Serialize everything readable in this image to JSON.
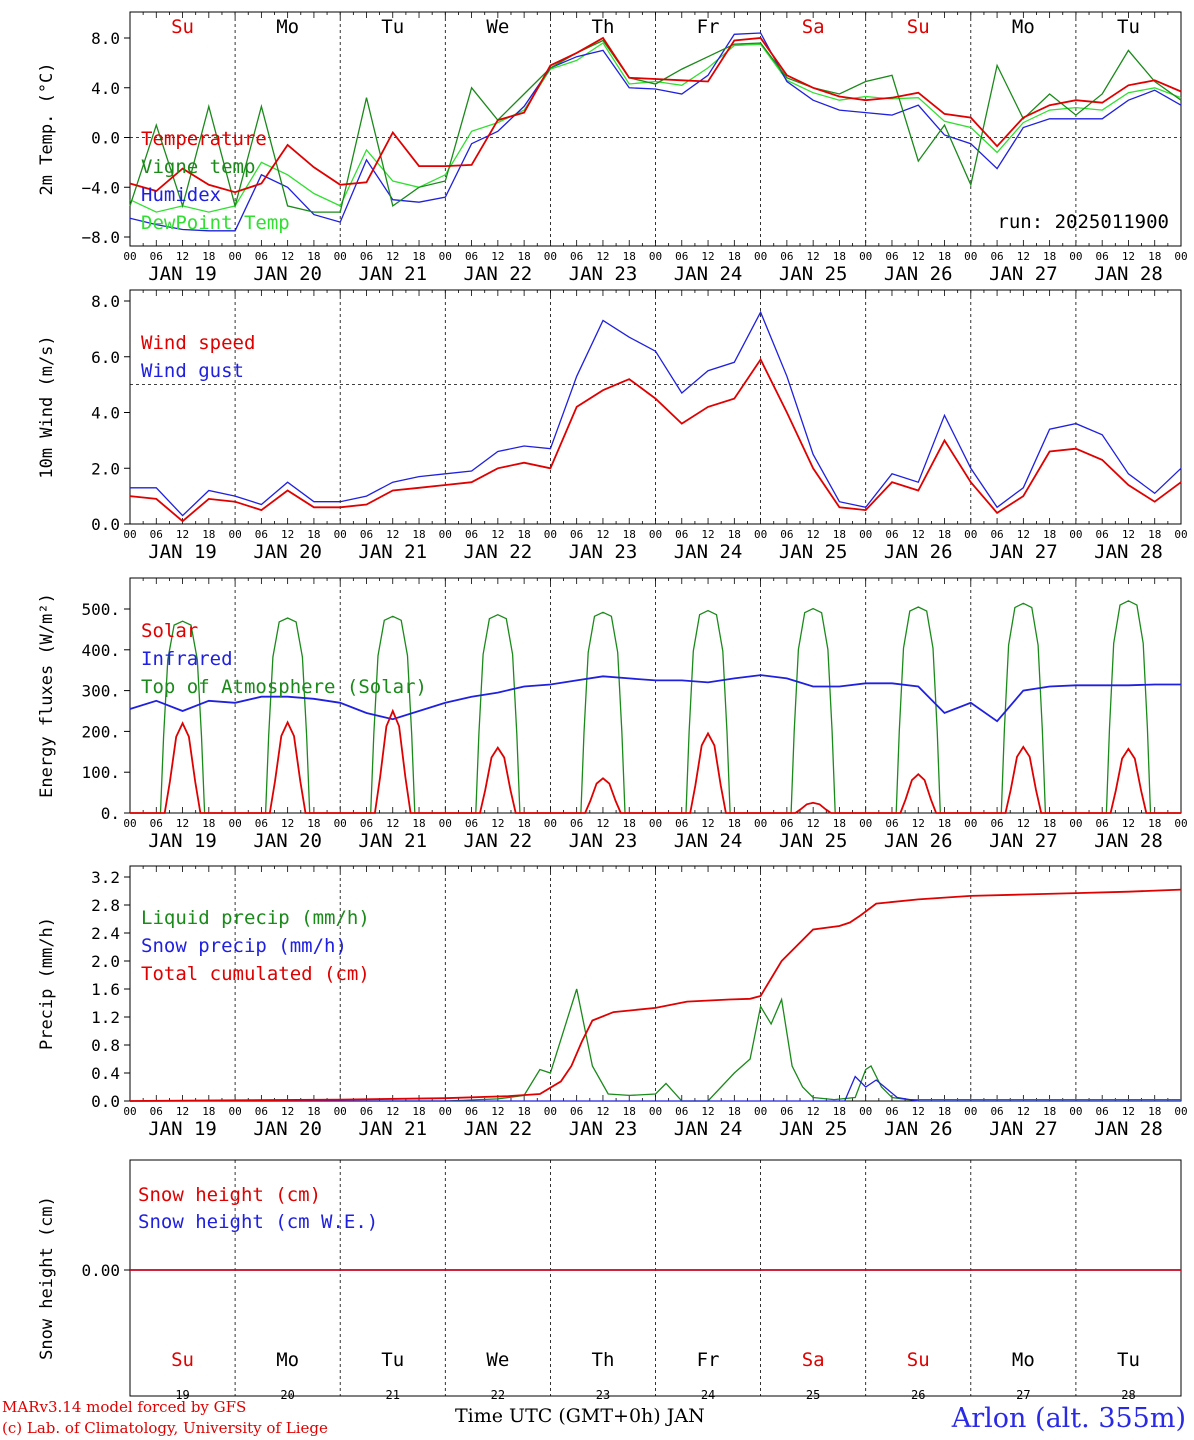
{
  "days": [
    "19",
    "20",
    "21",
    "22",
    "23",
    "24",
    "25",
    "26",
    "27",
    "28"
  ],
  "month": "JAN",
  "weekdays": [
    "Su",
    "Mo",
    "Tu",
    "We",
    "Th",
    "Fr",
    "Sa",
    "Su",
    "Mo",
    "Tu"
  ],
  "weekend_flags": [
    true,
    false,
    false,
    false,
    false,
    false,
    true,
    true,
    false,
    false
  ],
  "hour_ticks": [
    "00",
    "06",
    "12",
    "18"
  ],
  "colors": {
    "red": "#e00000",
    "green": "#1a8a1a",
    "blue": "#2020e0",
    "light_green": "#30e030"
  },
  "footer": {
    "model": "MARv3.14 model forced by GFS",
    "credit": "(c) Lab. of Climatology, University of Liege",
    "xlabel": "Time UTC (GMT+0h) JAN",
    "station": "Arlon (alt. 355m)"
  },
  "chart_data": [
    {
      "type": "line",
      "ylabel": "2m Temp. (°C)",
      "ylim": [
        -8,
        10
      ],
      "yticks": [
        "8.0",
        "4.0",
        "0.0",
        "−4.0",
        "−8.0"
      ],
      "ytick_values": [
        8,
        4,
        0,
        -4,
        -8
      ],
      "ref_line": 0,
      "annotation": "run: 2025011900",
      "x_days": [
        0,
        0.25,
        0.5,
        0.75,
        1,
        1.25,
        1.5,
        1.75,
        2,
        2.25,
        2.5,
        2.75,
        3,
        3.25,
        3.5,
        3.75,
        4,
        4.25,
        4.5,
        4.75,
        5,
        5.25,
        5.5,
        5.75,
        6,
        6.25,
        6.5,
        6.75,
        7,
        7.25,
        7.5,
        7.75,
        8,
        8.25,
        8.5,
        8.75,
        9,
        9.25,
        9.5,
        9.75,
        10
      ],
      "series": [
        {
          "name": "Temperature",
          "color": "red",
          "values": [
            -3.7,
            -4.3,
            -2.5,
            -3.8,
            -4.4,
            -3.7,
            -0.6,
            -2.4,
            -3.8,
            -3.6,
            0.4,
            -2.3,
            -2.3,
            -2.2,
            1.4,
            2.0,
            5.8,
            6.8,
            8.0,
            4.8,
            4.7,
            4.6,
            4.5,
            7.8,
            8.0,
            5.0,
            4.0,
            3.3,
            3.0,
            3.2,
            3.6,
            1.9,
            1.6,
            -0.7,
            1.6,
            2.6,
            3.0,
            2.8,
            4.2,
            4.6,
            3.7
          ]
        },
        {
          "name": "Vigne temp",
          "color": "green",
          "values": [
            -5.5,
            1.0,
            -5.5,
            2.5,
            -5.5,
            2.5,
            -5.5,
            -6.0,
            -6.0,
            3.2,
            -5.5,
            -4.0,
            -3.5,
            4.0,
            1.4,
            3.5,
            5.6,
            6.8,
            7.8,
            4.8,
            4.3,
            5.5,
            6.5,
            7.5,
            7.6,
            4.8,
            4.0,
            3.5,
            4.5,
            5.0,
            -1.9,
            1.0,
            -3.8,
            5.8,
            1.5,
            3.5,
            1.8,
            3.5,
            7.0,
            4.5,
            3.0
          ]
        },
        {
          "name": "Humidex",
          "color": "blue",
          "values": [
            -6.5,
            -7.0,
            -7.4,
            -7.5,
            -7.5,
            -3.0,
            -4.0,
            -6.2,
            -6.8,
            -1.8,
            -5.0,
            -5.2,
            -4.8,
            -0.5,
            0.5,
            2.5,
            5.6,
            6.5,
            7.0,
            4.0,
            3.9,
            3.5,
            5.0,
            8.3,
            8.4,
            4.5,
            3.0,
            2.2,
            2.0,
            1.8,
            2.6,
            0.2,
            -0.5,
            -2.5,
            0.8,
            1.5,
            1.5,
            1.5,
            3.0,
            3.8,
            2.6
          ]
        },
        {
          "name": "DewPoint Temp",
          "color": "light_green",
          "values": [
            -5.0,
            -6.0,
            -5.5,
            -6.0,
            -5.5,
            -2.0,
            -3.0,
            -4.5,
            -5.5,
            -1.0,
            -3.5,
            -4.0,
            -3.0,
            0.5,
            1.2,
            2.2,
            5.5,
            6.2,
            7.6,
            4.3,
            4.5,
            4.2,
            5.6,
            7.4,
            7.5,
            4.6,
            3.6,
            3.0,
            3.3,
            3.1,
            3.2,
            1.3,
            0.8,
            -1.2,
            1.2,
            2.2,
            2.4,
            2.2,
            3.6,
            4.0,
            3.2
          ]
        }
      ]
    },
    {
      "type": "line",
      "ylabel": "10m Wind (m/s)",
      "ylim": [
        0,
        8
      ],
      "yticks": [
        "8.0",
        "6.0",
        "4.0",
        "2.0",
        "0.0"
      ],
      "ytick_values": [
        8,
        6,
        4,
        2,
        0
      ],
      "ref_line": 5,
      "x_days": [
        0,
        0.25,
        0.5,
        0.75,
        1,
        1.25,
        1.5,
        1.75,
        2,
        2.25,
        2.5,
        2.75,
        3,
        3.25,
        3.5,
        3.75,
        4,
        4.25,
        4.5,
        4.75,
        5,
        5.25,
        5.5,
        5.75,
        6,
        6.25,
        6.5,
        6.75,
        7,
        7.25,
        7.5,
        7.75,
        8,
        8.25,
        8.5,
        8.75,
        9,
        9.25,
        9.5,
        9.75,
        10
      ],
      "series": [
        {
          "name": "Wind speed",
          "color": "red",
          "values": [
            1.0,
            0.9,
            0.1,
            0.9,
            0.8,
            0.5,
            1.2,
            0.6,
            0.6,
            0.7,
            1.2,
            1.3,
            1.4,
            1.5,
            2.0,
            2.2,
            2.0,
            4.2,
            4.8,
            5.2,
            4.5,
            3.6,
            4.2,
            4.5,
            5.9,
            4.0,
            2.0,
            0.6,
            0.5,
            1.5,
            1.2,
            3.0,
            1.5,
            0.4,
            1.0,
            2.6,
            2.7,
            2.3,
            1.4,
            0.8,
            1.5
          ]
        },
        {
          "name": "Wind gust",
          "color": "blue",
          "values": [
            1.3,
            1.3,
            0.3,
            1.2,
            1.0,
            0.7,
            1.5,
            0.8,
            0.8,
            1.0,
            1.5,
            1.7,
            1.8,
            1.9,
            2.6,
            2.8,
            2.7,
            5.3,
            7.3,
            6.7,
            6.2,
            4.7,
            5.5,
            5.8,
            7.6,
            5.3,
            2.5,
            0.8,
            0.6,
            1.8,
            1.5,
            3.9,
            2.0,
            0.6,
            1.3,
            3.4,
            3.6,
            3.2,
            1.8,
            1.1,
            2.0
          ]
        }
      ]
    },
    {
      "type": "line",
      "ylabel": "Energy fluxes (W/m²)",
      "ylim": [
        0,
        550
      ],
      "yticks": [
        "500.",
        "400.",
        "300.",
        "200.",
        "100.",
        "0."
      ],
      "ytick_values": [
        500,
        400,
        300,
        200,
        100,
        0
      ],
      "solar_peaks": [
        220,
        222,
        250,
        160,
        85,
        195,
        25,
        95,
        162,
        157
      ],
      "toa_peaks": [
        470,
        478,
        482,
        486,
        492,
        496,
        501,
        505,
        514,
        520
      ],
      "infrared": {
        "name": "Infrared",
        "color": "blue",
        "x_days": [
          0,
          0.25,
          0.5,
          0.75,
          1,
          1.25,
          1.5,
          1.75,
          2,
          2.25,
          2.5,
          2.75,
          3,
          3.25,
          3.5,
          3.75,
          4,
          4.25,
          4.5,
          4.75,
          5,
          5.25,
          5.5,
          5.75,
          6,
          6.25,
          6.5,
          6.75,
          7,
          7.25,
          7.5,
          7.75,
          8,
          8.25,
          8.5,
          8.75,
          9,
          9.25,
          9.5,
          9.75,
          10
        ],
        "values": [
          255,
          275,
          250,
          275,
          270,
          285,
          285,
          280,
          270,
          245,
          230,
          250,
          270,
          285,
          295,
          310,
          315,
          325,
          335,
          330,
          325,
          325,
          320,
          330,
          338,
          330,
          310,
          310,
          318,
          318,
          310,
          245,
          270,
          225,
          300,
          310,
          313,
          313,
          313,
          315,
          315
        ]
      },
      "series_names": {
        "solar": "Solar",
        "infrared": "Infrared",
        "toa": "Top of Atmosphere (Solar)"
      },
      "series_colors": {
        "solar": "red",
        "infrared": "blue",
        "toa": "green"
      }
    },
    {
      "type": "line",
      "ylabel": "Precip (mm/h)",
      "ylim": [
        0,
        3.2
      ],
      "yticks": [
        "3.2",
        "2.8",
        "2.4",
        "2.0",
        "1.6",
        "1.2",
        "0.8",
        "0.4",
        "0.0"
      ],
      "ytick_values": [
        3.2,
        2.8,
        2.4,
        2.0,
        1.6,
        1.2,
        0.8,
        0.4,
        0.0
      ],
      "series": [
        {
          "name": "Liquid precip (mm/h)",
          "color": "green",
          "x_days": [
            0,
            3.0,
            3.5,
            3.75,
            3.9,
            4.0,
            4.25,
            4.4,
            4.55,
            4.75,
            5.0,
            5.1,
            5.25,
            5.5,
            5.75,
            5.9,
            6.0,
            6.1,
            6.2,
            6.3,
            6.4,
            6.5,
            6.7,
            6.9,
            7.0,
            7.05,
            7.15,
            7.25,
            7.4,
            8.0,
            10
          ],
          "values": [
            0.0,
            0.0,
            0.03,
            0.08,
            0.45,
            0.4,
            1.6,
            0.5,
            0.1,
            0.08,
            0.1,
            0.25,
            0.0,
            0.0,
            0.4,
            0.6,
            1.35,
            1.1,
            1.45,
            0.5,
            0.2,
            0.05,
            0.02,
            0.05,
            0.45,
            0.5,
            0.2,
            0.05,
            0.02,
            0.02,
            0.02
          ]
        },
        {
          "name": "Snow precip (mm/h)",
          "color": "blue",
          "x_days": [
            0,
            6.5,
            6.8,
            6.9,
            7.0,
            7.1,
            7.3,
            7.5,
            10
          ],
          "values": [
            0.0,
            0.0,
            0.0,
            0.35,
            0.2,
            0.3,
            0.05,
            0.0,
            0.0
          ]
        },
        {
          "name": "Total cumulated (cm)",
          "color": "red",
          "x_days": [
            0,
            1.0,
            2.0,
            3.0,
            3.6,
            3.9,
            4.1,
            4.2,
            4.3,
            4.4,
            4.6,
            5.0,
            5.3,
            5.7,
            5.9,
            6.0,
            6.1,
            6.2,
            6.5,
            6.75,
            6.85,
            6.95,
            7.1,
            7.5,
            8.0,
            8.5,
            9.0,
            9.5,
            10
          ],
          "values": [
            0.0,
            0.01,
            0.02,
            0.04,
            0.07,
            0.1,
            0.28,
            0.5,
            0.85,
            1.15,
            1.27,
            1.33,
            1.42,
            1.45,
            1.46,
            1.5,
            1.75,
            2.0,
            2.45,
            2.5,
            2.55,
            2.65,
            2.82,
            2.88,
            2.93,
            2.95,
            2.97,
            2.99,
            3.02
          ]
        }
      ]
    },
    {
      "type": "line",
      "ylabel": "Snow height (cm)",
      "yticks": [
        "0.00"
      ],
      "ytick_values": [
        0
      ],
      "series": [
        {
          "name": "Snow height (cm)",
          "color": "red",
          "values": [
            0,
            0
          ]
        },
        {
          "name": "Snow height (cm W.E.)",
          "color": "blue",
          "values": [
            0,
            0
          ]
        }
      ]
    }
  ]
}
